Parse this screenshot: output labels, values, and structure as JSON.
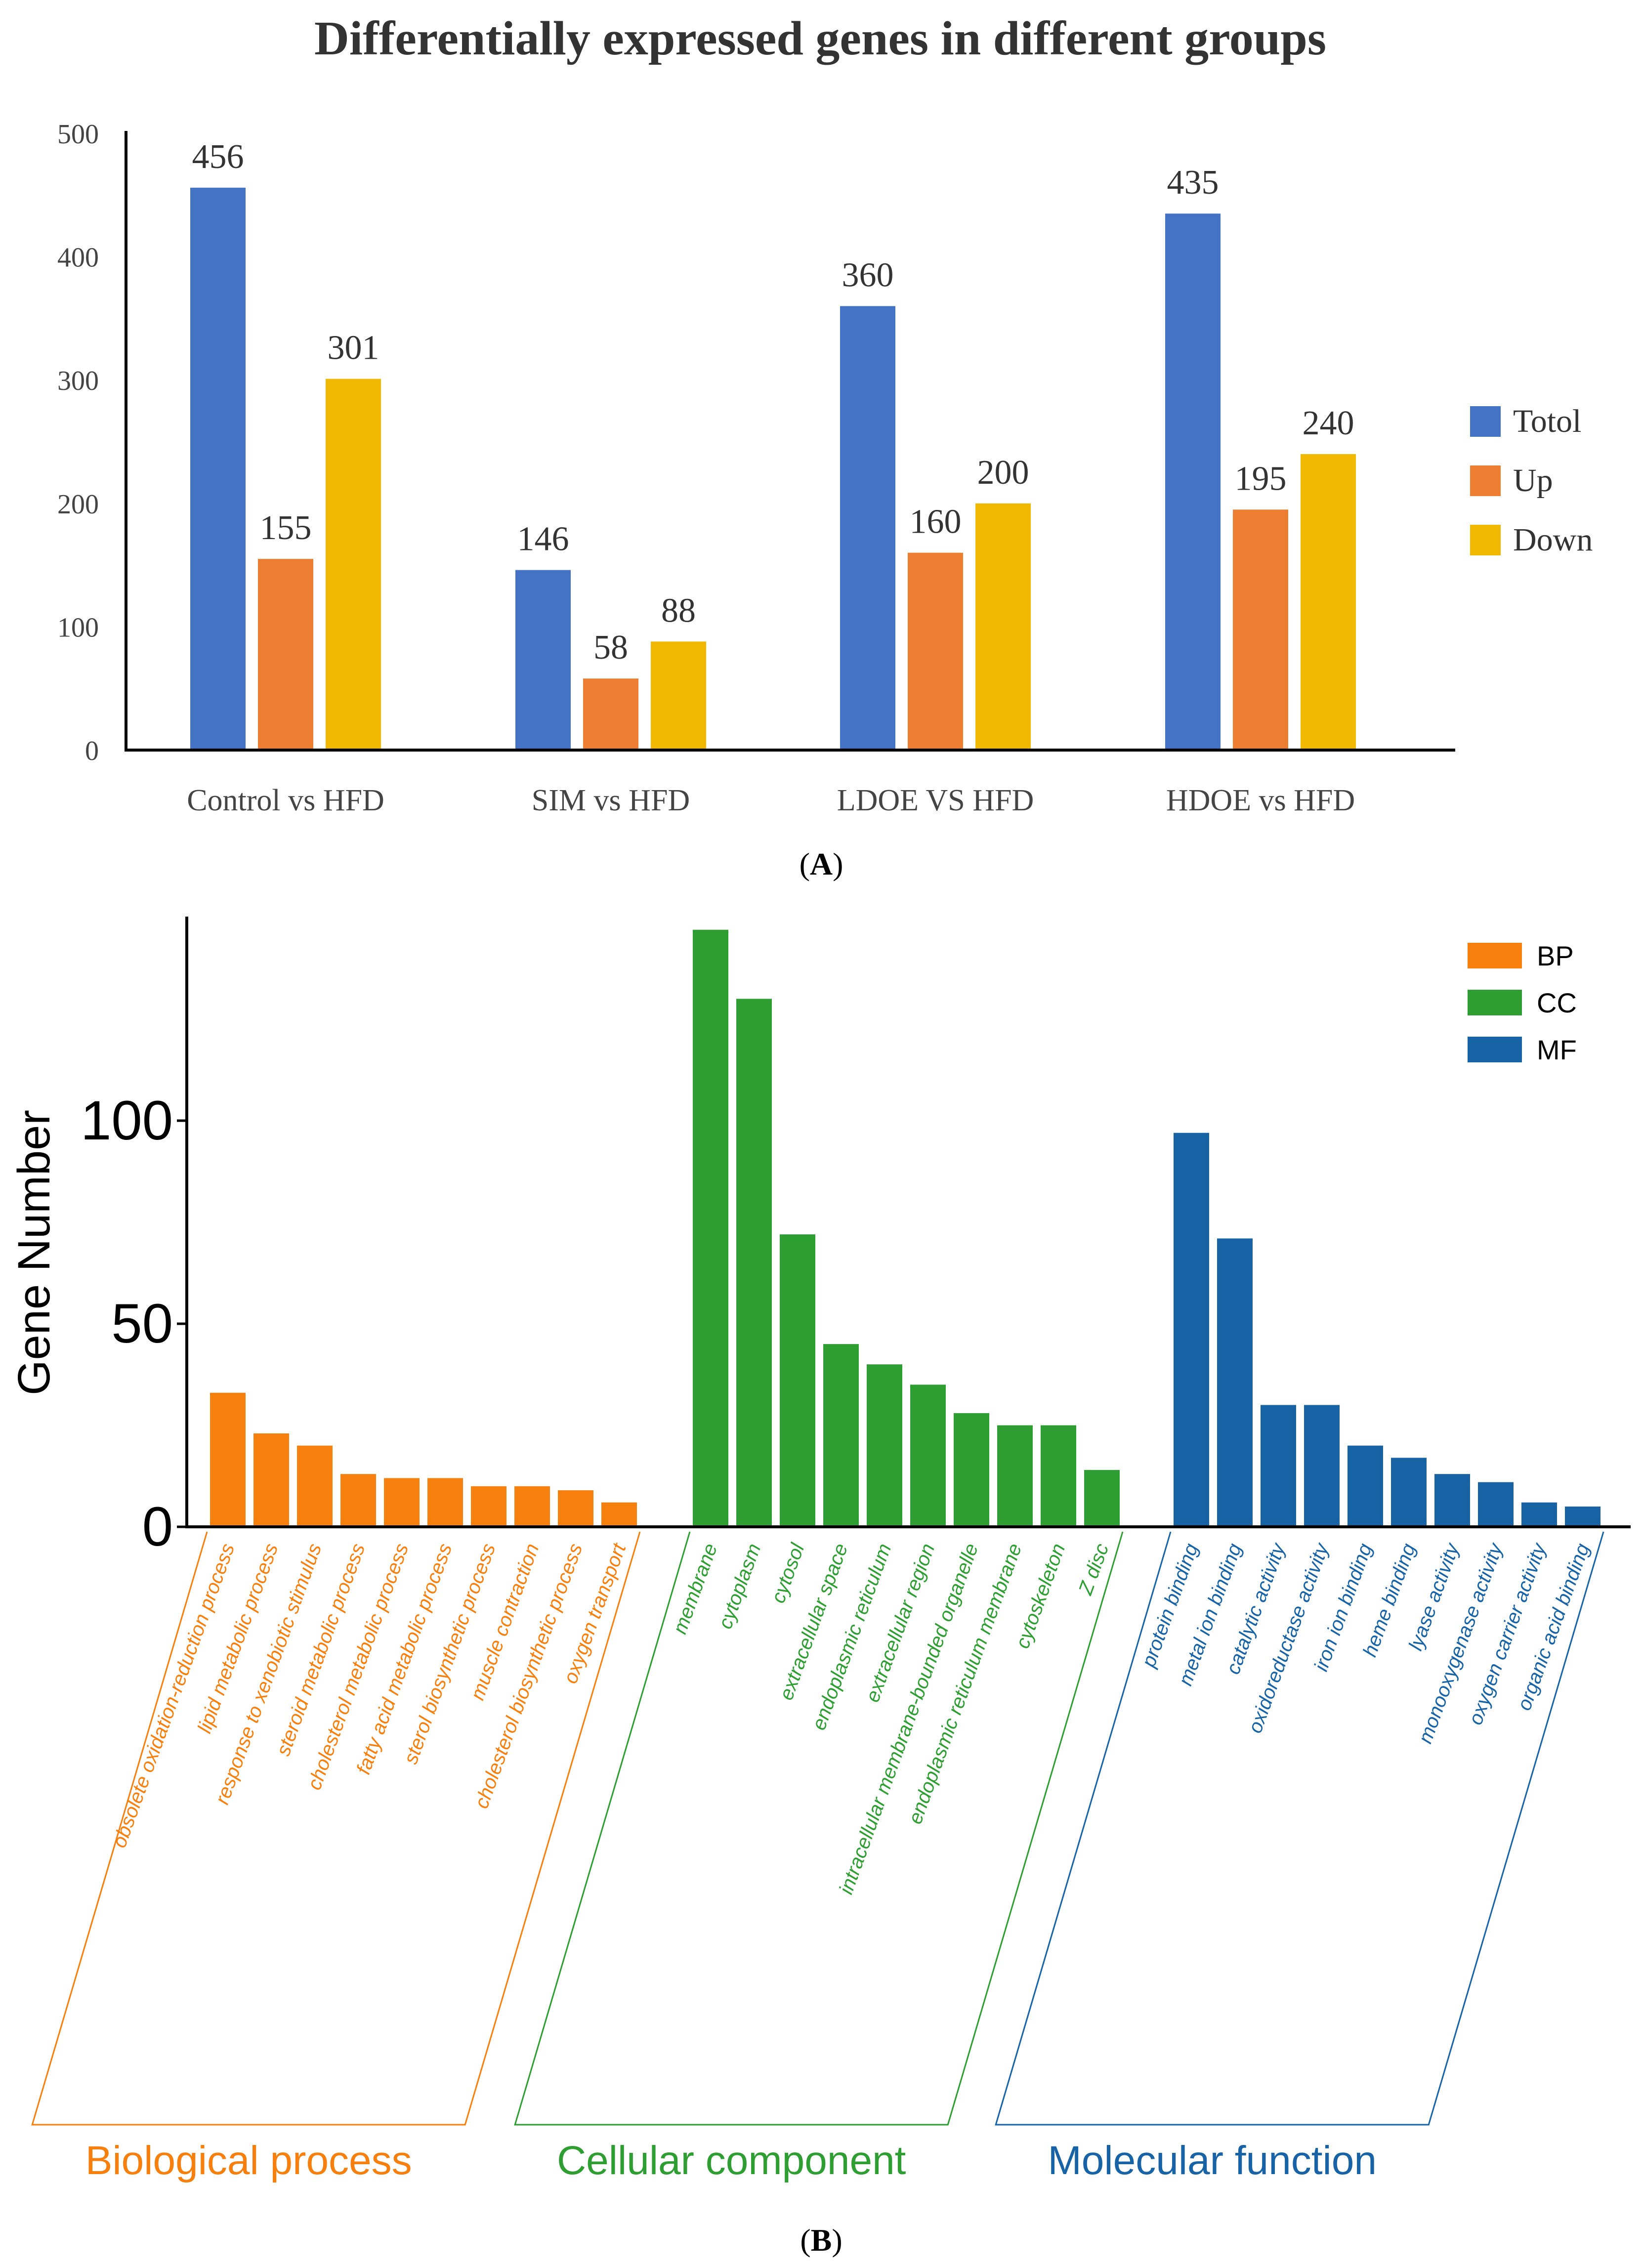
{
  "chart_data": [
    {
      "type": "bar",
      "title": "Differentially expressed genes in different groups",
      "panel_label": "A",
      "categories": [
        "Control vs HFD",
        "SIM vs HFD",
        "LDOE VS HFD",
        "HDOE vs HFD"
      ],
      "series": [
        {
          "name": "Totol",
          "color": "#4472C4",
          "values": [
            456,
            146,
            360,
            435
          ]
        },
        {
          "name": "Up",
          "color": "#ED7D31",
          "values": [
            155,
            58,
            160,
            195
          ]
        },
        {
          "name": "Down",
          "color": "#F0B800",
          "values": [
            301,
            88,
            200,
            240
          ]
        }
      ],
      "ylim": [
        0,
        500
      ],
      "yticks": [
        0,
        100,
        200,
        300,
        400,
        500
      ],
      "xlabel": "",
      "ylabel": "",
      "legend": "right"
    },
    {
      "type": "bar",
      "panel_label": "B",
      "ylabel": "Gene Number",
      "ylim": [
        0,
        148
      ],
      "yticks": [
        0,
        50,
        100
      ],
      "legend": "top-right",
      "groups": [
        {
          "key": "BP",
          "name": "Biological process",
          "color": "#F77F0E",
          "categories": [
            "obsolete oxidation-reduction process",
            "lipid metabolic process",
            "response to xenobiotic stimulus",
            "steroid metabolic process",
            "cholesterol metabolic process",
            "fatty acid metabolic process",
            "sterol biosynthetic process",
            "muscle contraction",
            "cholesterol biosynthetic process",
            "oxygen transport"
          ],
          "values": [
            33,
            23,
            20,
            13,
            12,
            12,
            10,
            10,
            9,
            6
          ]
        },
        {
          "key": "CC",
          "name": "Cellular component",
          "color": "#2E9E33",
          "categories": [
            "membrane",
            "cytoplasm",
            "cytosol",
            "extracellular space",
            "endoplasmic reticulum",
            "extracellular region",
            "intracellular membrane-bounded organelle",
            "endoplasmic reticulum membrane",
            "cytoskeleton",
            "Z disc"
          ],
          "values": [
            147,
            130,
            72,
            45,
            40,
            35,
            28,
            25,
            25,
            14
          ]
        },
        {
          "key": "MF",
          "name": "Molecular function",
          "color": "#1763A6",
          "categories": [
            "protein binding",
            "metal ion binding",
            "catalytic activity",
            "oxidoreductase activity",
            "iron ion binding",
            "heme binding",
            "lyase activity",
            "monooxygenase activity",
            "oxygen carrier activity",
            "organic acid binding"
          ],
          "values": [
            97,
            71,
            30,
            30,
            20,
            17,
            13,
            11,
            6,
            5
          ]
        }
      ]
    }
  ]
}
